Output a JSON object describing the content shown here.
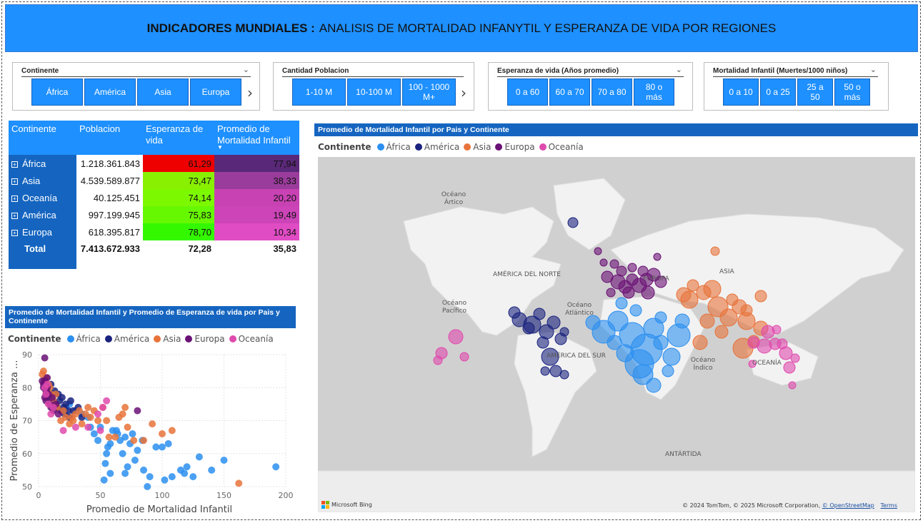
{
  "title": {
    "bold": "INDICADORES MUNDIALES :",
    "rest": "ANALISIS DE MORTALIDAD INFANYTIL Y ESPERANZA DE VIDA POR REGIONES"
  },
  "slicers": {
    "continente": {
      "title": "Continente",
      "options": [
        "África",
        "América",
        "Asia",
        "Europa"
      ]
    },
    "poblacion": {
      "title": "Cantidad Poblacion",
      "options": [
        "1-10 M",
        "10-100 M",
        "100 - 1000 M+"
      ]
    },
    "esperanza": {
      "title": "Esperanza de vida (Años promedio)",
      "options": [
        "0 a 60",
        "60 a 70",
        "70 a 80",
        "80 o más"
      ]
    },
    "mortalidad": {
      "title": "Mortalidad Infantil (Muertes/1000 niños)",
      "options": [
        "0 a 10",
        "0 a 25",
        "25 a 50",
        "50 o más"
      ]
    }
  },
  "matrix": {
    "headers": [
      "Continente",
      "Poblacion",
      "Esperanza de vida",
      "Promedio de Mortalidad Infantil"
    ],
    "rows": [
      {
        "continente": "África",
        "poblacion": "1.218.361.843",
        "esperanza": "61,29",
        "mortalidad": "77,94",
        "esp_color": "#ee0000",
        "mort_color": "#5a2878"
      },
      {
        "continente": "Asia",
        "poblacion": "4.539.589.877",
        "esperanza": "73,47",
        "mortalidad": "38,33",
        "esp_color": "#88f000",
        "mort_color": "#9a3c9c"
      },
      {
        "continente": "Oceanía",
        "poblacion": "40.125.451",
        "esperanza": "74,14",
        "mortalidad": "20,20",
        "esp_color": "#7cf800",
        "mort_color": "#c842b4"
      },
      {
        "continente": "América",
        "poblacion": "997.199.945",
        "esperanza": "75,83",
        "mortalidad": "19,49",
        "esp_color": "#66f800",
        "mort_color": "#cc44b8"
      },
      {
        "continente": "Europa",
        "poblacion": "618.395.817",
        "esperanza": "78,70",
        "mortalidad": "10,34",
        "esp_color": "#33f800",
        "mort_color": "#e04cc4"
      }
    ],
    "total": {
      "label": "Total",
      "poblacion": "7.413.672.933",
      "esperanza": "72,28",
      "mortalidad": "35,83"
    }
  },
  "legend": {
    "title": "Continente",
    "items": [
      {
        "name": "África",
        "color": "#2b8ff0"
      },
      {
        "name": "América",
        "color": "#1a237e"
      },
      {
        "name": "Asia",
        "color": "#e8733a"
      },
      {
        "name": "Europa",
        "color": "#6a1175"
      },
      {
        "name": "Oceanía",
        "color": "#e04aad"
      }
    ]
  },
  "map": {
    "title": "Promedio de Mortalidad Infantil por Pais y Continente",
    "labels": {
      "artico": "Océano Ártico",
      "america_norte": "AMÉRICA DEL NORTE",
      "europa": "EUROPA",
      "asia": "ASIA",
      "atlantico": "Océano Atlántico",
      "pacifico": "Océano Pacífico",
      "america_sur": "AMÉRICA DEL SUR",
      "indico": "Océano Índico",
      "oceania": "OCEANÍA",
      "antartida": "ANTÁRTIDA"
    },
    "bing": "Microsoft Bing",
    "copyright": "© 2024 TomTom, © 2025 Microsoft Corporation,",
    "osm": "© OpenStreetMap",
    "terms": "Terms"
  },
  "chart_data": {
    "type": "scatter",
    "title": "Promedio de Mortalidad Infantil y Promedio de Esperanza de vida por Pais y Continente",
    "xlabel": "Promedio de Mortalidad Infantil",
    "ylabel": "Promedio de Esperanza ...",
    "xlim": [
      0,
      200
    ],
    "ylim": [
      50,
      90
    ],
    "xticks": [
      0,
      50,
      100,
      150,
      200
    ],
    "yticks": [
      50,
      60,
      70,
      80,
      90
    ],
    "grid": true,
    "legend_position": "top",
    "series": [
      {
        "name": "África",
        "color": "#2b8ff0",
        "points": [
          [
            192,
            56
          ],
          [
            130,
            59
          ],
          [
            150,
            58
          ],
          [
            120,
            56
          ],
          [
            118,
            54
          ],
          [
            108,
            53
          ],
          [
            100,
            62
          ],
          [
            105,
            63
          ],
          [
            95,
            62
          ],
          [
            90,
            53
          ],
          [
            85,
            55
          ],
          [
            88,
            50
          ],
          [
            78,
            58
          ],
          [
            72,
            56
          ],
          [
            70,
            54
          ],
          [
            68,
            60
          ],
          [
            74,
            63
          ],
          [
            80,
            61
          ],
          [
            64,
            66
          ],
          [
            60,
            67
          ],
          [
            58,
            63
          ],
          [
            56,
            62
          ],
          [
            55,
            60
          ],
          [
            54,
            57
          ],
          [
            53,
            52
          ],
          [
            58,
            54
          ],
          [
            66,
            64
          ],
          [
            63,
            67
          ],
          [
            48,
            64
          ],
          [
            45,
            66
          ],
          [
            42,
            68
          ],
          [
            40,
            71
          ],
          [
            35,
            72
          ],
          [
            30,
            73
          ],
          [
            25,
            75
          ],
          [
            22,
            74
          ],
          [
            50,
            68
          ],
          [
            70,
            65
          ],
          [
            76,
            66
          ],
          [
            84,
            64
          ],
          [
            102,
            52
          ],
          [
            115,
            55
          ],
          [
            140,
            55
          ],
          [
            125,
            53
          ]
        ]
      },
      {
        "name": "América",
        "color": "#1a237e",
        "points": [
          [
            5,
            80
          ],
          [
            7,
            79
          ],
          [
            8,
            77
          ],
          [
            10,
            78
          ],
          [
            12,
            76
          ],
          [
            14,
            75
          ],
          [
            15,
            74
          ],
          [
            17,
            76
          ],
          [
            18,
            73
          ],
          [
            20,
            74
          ],
          [
            21,
            72
          ],
          [
            22,
            75
          ],
          [
            24,
            73
          ],
          [
            25,
            71
          ],
          [
            28,
            73
          ],
          [
            32,
            74
          ],
          [
            35,
            71
          ],
          [
            10,
            81
          ],
          [
            13,
            79
          ],
          [
            16,
            78
          ],
          [
            19,
            77
          ],
          [
            26,
            76
          ]
        ]
      },
      {
        "name": "Asia",
        "color": "#e8733a",
        "points": [
          [
            162,
            51
          ],
          [
            108,
            67
          ],
          [
            100,
            66
          ],
          [
            92,
            69
          ],
          [
            85,
            64
          ],
          [
            77,
            64
          ],
          [
            72,
            68
          ],
          [
            70,
            74
          ],
          [
            68,
            72
          ],
          [
            65,
            71
          ],
          [
            62,
            65
          ],
          [
            57,
            65
          ],
          [
            55,
            70
          ],
          [
            48,
            70
          ],
          [
            45,
            73
          ],
          [
            42,
            71
          ],
          [
            38,
            72
          ],
          [
            35,
            69
          ],
          [
            30,
            72
          ],
          [
            28,
            70
          ],
          [
            25,
            69
          ],
          [
            22,
            71
          ],
          [
            18,
            70
          ],
          [
            15,
            74
          ],
          [
            12,
            76
          ],
          [
            10,
            78
          ],
          [
            8,
            81
          ],
          [
            6,
            83
          ],
          [
            4,
            85
          ],
          [
            3,
            84
          ],
          [
            5,
            82
          ],
          [
            9,
            80
          ],
          [
            14,
            78
          ],
          [
            20,
            73
          ],
          [
            27,
            71
          ],
          [
            33,
            73
          ],
          [
            40,
            74
          ],
          [
            52,
            74
          ]
        ]
      },
      {
        "name": "Europa",
        "color": "#6a1175",
        "points": [
          [
            5,
            89
          ],
          [
            3,
            82
          ],
          [
            4,
            81
          ],
          [
            4,
            80
          ],
          [
            5,
            82
          ],
          [
            6,
            79
          ],
          [
            7,
            80
          ],
          [
            8,
            78
          ],
          [
            5,
            77
          ],
          [
            6,
            76
          ],
          [
            9,
            75
          ],
          [
            10,
            74
          ],
          [
            12,
            73
          ],
          [
            14,
            75
          ],
          [
            16,
            72
          ],
          [
            80,
            73
          ],
          [
            11,
            77
          ],
          [
            7,
            83
          ],
          [
            6,
            78
          ]
        ]
      },
      {
        "name": "Oceanía",
        "color": "#e04aad",
        "points": [
          [
            55,
            76
          ],
          [
            52,
            74
          ],
          [
            48,
            72
          ],
          [
            50,
            67
          ],
          [
            40,
            68
          ],
          [
            30,
            68
          ],
          [
            20,
            67
          ],
          [
            10,
            72
          ],
          [
            8,
            75
          ],
          [
            6,
            78
          ],
          [
            5,
            80
          ],
          [
            7,
            81
          ],
          [
            12,
            74
          ]
        ]
      }
    ]
  }
}
